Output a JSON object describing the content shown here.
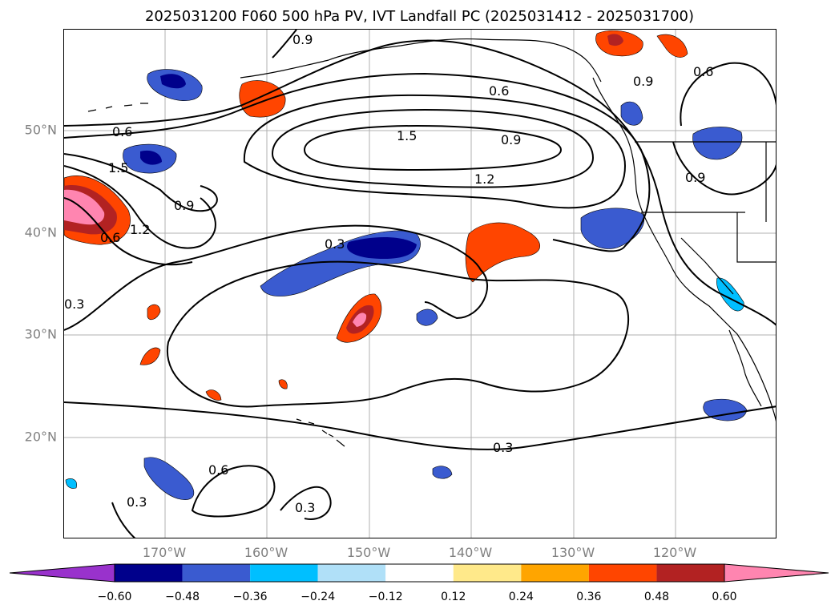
{
  "title": "2025031200 F060 500 hPa PV, IVT Landfall PC (2025031412 - 2025031700)",
  "lat_labels": [
    "50°N",
    "40°N",
    "30°N",
    "20°N"
  ],
  "lon_labels": [
    "170°W",
    "160°W",
    "150°W",
    "140°W",
    "130°W",
    "120°W"
  ],
  "contour_labels": [
    "0.9",
    "0.6",
    "0.6",
    "1.5",
    "1.5",
    "0.9",
    "1.2",
    "0.9",
    "0.6",
    "1.2",
    "0.9",
    "0.6",
    "0.9",
    "0.3",
    "0.3",
    "0.3",
    "0.6",
    "0.3",
    "0.3"
  ],
  "colorbar": {
    "ticks": [
      "−0.60",
      "−0.48",
      "−0.36",
      "−0.24",
      "−0.12",
      "0.12",
      "0.24",
      "0.36",
      "0.48",
      "0.60"
    ],
    "colors": [
      "#9932CC",
      "#00008B",
      "#3A5BD0",
      "#00BFFF",
      "#B0E0F8",
      "#FFFFFF",
      "#FFE98A",
      "#FFA500",
      "#FF4500",
      "#B22222",
      "#FF85B0"
    ]
  }
}
